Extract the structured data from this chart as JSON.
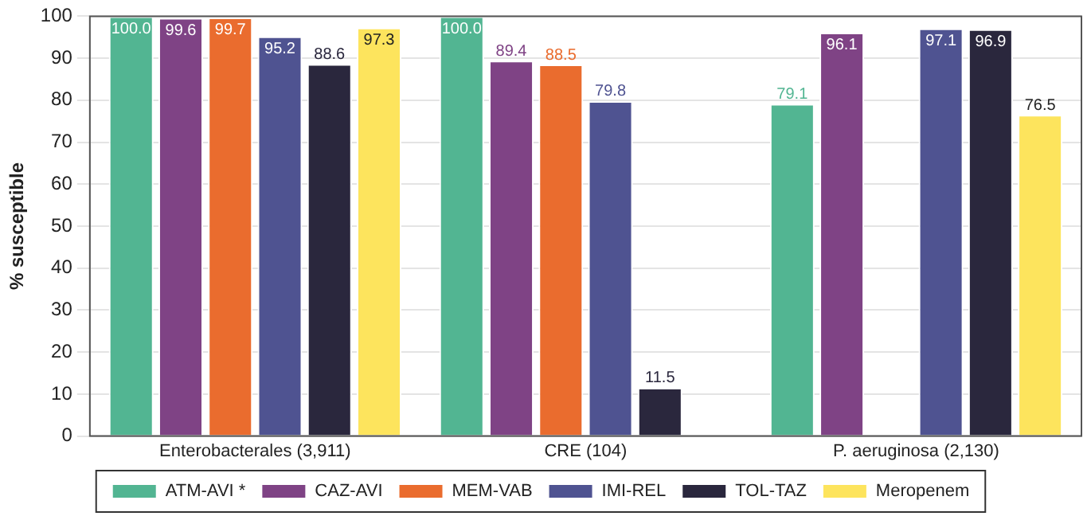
{
  "chart_data": {
    "type": "bar",
    "ylabel": "% susceptible",
    "categories": [
      "Enterobacterales (3,911)",
      "CRE (104)",
      "P. aeruginosa (2,130)"
    ],
    "series": [
      {
        "name": "ATM-AVI *",
        "color": "#52b592",
        "values": [
          100,
          100,
          79.1
        ],
        "value_labels": [
          "100.0",
          "100.0",
          "79.1"
        ]
      },
      {
        "name": "CAZ-AVI",
        "color": "#7f4385",
        "values": [
          99.6,
          89.4,
          96.1
        ],
        "value_labels": [
          "99.6",
          "89.4",
          "96.1"
        ]
      },
      {
        "name": "MEM-VAB",
        "color": "#ea6c2e",
        "values": [
          99.7,
          88.5,
          null
        ],
        "value_labels": [
          "99.7",
          "88.5",
          null
        ]
      },
      {
        "name": "IMI-REL",
        "color": "#4f5391",
        "values": [
          95.2,
          79.8,
          97.1
        ],
        "value_labels": [
          "95.2",
          "79.8",
          "97.1"
        ]
      },
      {
        "name": "TOL-TAZ",
        "color": "#2a273d",
        "values": [
          88.6,
          11.5,
          96.9
        ],
        "value_labels": [
          "88.6",
          "11.5",
          "96.9"
        ]
      },
      {
        "name": "Meropenem",
        "color": "#fde45d",
        "values": [
          97.3,
          null,
          76.5
        ],
        "value_labels": [
          "97.3",
          null,
          "76.5"
        ]
      }
    ],
    "ylim": [
      0,
      100
    ],
    "yticks": [
      0,
      10,
      20,
      30,
      40,
      50,
      60,
      70,
      80,
      90,
      100
    ],
    "grid": "y",
    "legend": "bottom"
  }
}
